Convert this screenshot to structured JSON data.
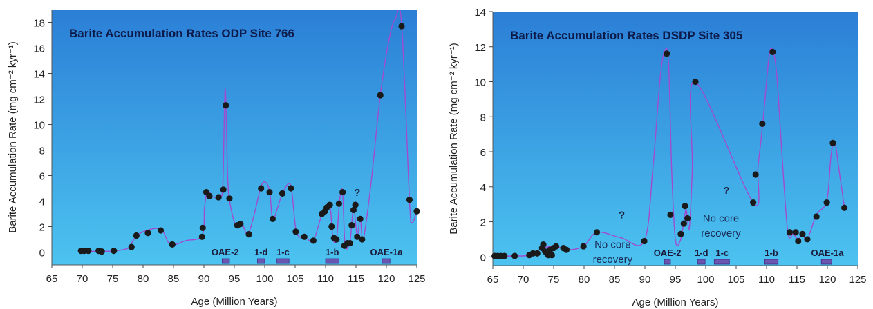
{
  "chart_data": [
    {
      "type": "line",
      "title": "Barite Accumulation Rates ODP Site 766",
      "xlabel": "Age (Million Years)",
      "ylabel": "Barite Accumulation Rate (mg cm⁻² kyr⁻¹)",
      "xlim": [
        65,
        125
      ],
      "ylim": [
        -1,
        19
      ],
      "xticks": [
        65,
        70,
        75,
        80,
        85,
        90,
        95,
        100,
        105,
        110,
        115,
        120,
        125
      ],
      "yticks": [
        0,
        2,
        4,
        6,
        8,
        10,
        12,
        14,
        16,
        18
      ],
      "grid": false,
      "colors": {
        "background_top": "#2b7fd6",
        "background_bottom": "#4cc3f0",
        "curve": "#a24bd0",
        "points": "#1a1a1a",
        "event_bar": "#6a55b0",
        "title": "#0d1a4a"
      },
      "points": [
        {
          "x": 69.8,
          "y": 0.1
        },
        {
          "x": 70.3,
          "y": 0.1
        },
        {
          "x": 71.0,
          "y": 0.1
        },
        {
          "x": 72.7,
          "y": 0.1
        },
        {
          "x": 73.2,
          "y": 0.05
        },
        {
          "x": 75.2,
          "y": 0.1
        },
        {
          "x": 78.1,
          "y": 0.4
        },
        {
          "x": 78.9,
          "y": 1.3
        },
        {
          "x": 80.8,
          "y": 1.5
        },
        {
          "x": 82.9,
          "y": 1.7
        },
        {
          "x": 84.8,
          "y": 0.6
        },
        {
          "x": 89.7,
          "y": 1.2
        },
        {
          "x": 89.8,
          "y": 1.9
        },
        {
          "x": 90.4,
          "y": 4.7
        },
        {
          "x": 90.9,
          "y": 4.4
        },
        {
          "x": 92.4,
          "y": 4.3
        },
        {
          "x": 93.2,
          "y": 4.9
        },
        {
          "x": 93.6,
          "y": 11.5
        },
        {
          "x": 94.2,
          "y": 4.2
        },
        {
          "x": 95.5,
          "y": 2.1
        },
        {
          "x": 96.0,
          "y": 2.2
        },
        {
          "x": 97.4,
          "y": 1.4
        },
        {
          "x": 99.4,
          "y": 5.0
        },
        {
          "x": 100.8,
          "y": 4.7
        },
        {
          "x": 101.3,
          "y": 2.6
        },
        {
          "x": 102.9,
          "y": 4.6
        },
        {
          "x": 104.3,
          "y": 5.0
        },
        {
          "x": 105.1,
          "y": 1.6
        },
        {
          "x": 106.5,
          "y": 1.2
        },
        {
          "x": 108.0,
          "y": 0.9
        },
        {
          "x": 109.4,
          "y": 3.0
        },
        {
          "x": 109.9,
          "y": 3.2
        },
        {
          "x": 110.2,
          "y": 3.5
        },
        {
          "x": 110.7,
          "y": 3.7
        },
        {
          "x": 111.0,
          "y": 2.0
        },
        {
          "x": 111.4,
          "y": 1.1
        },
        {
          "x": 111.8,
          "y": 1.0
        },
        {
          "x": 112.2,
          "y": 3.8
        },
        {
          "x": 112.8,
          "y": 4.7
        },
        {
          "x": 113.1,
          "y": 0.5
        },
        {
          "x": 113.6,
          "y": 0.7
        },
        {
          "x": 114.0,
          "y": 0.7
        },
        {
          "x": 114.3,
          "y": 2.1
        },
        {
          "x": 114.6,
          "y": 3.3
        },
        {
          "x": 114.9,
          "y": 3.7
        },
        {
          "x": 115.2,
          "y": 1.2
        },
        {
          "x": 115.7,
          "y": 2.6
        },
        {
          "x": 116.0,
          "y": 1.0
        },
        {
          "x": 119.0,
          "y": 12.3
        },
        {
          "x": 122.5,
          "y": 17.7
        },
        {
          "x": 123.8,
          "y": 4.1
        },
        {
          "x": 125.0,
          "y": 3.2
        }
      ],
      "curve": [
        {
          "x": 69.8,
          "y": 0.1
        },
        {
          "x": 73.0,
          "y": 0.05
        },
        {
          "x": 75.2,
          "y": 0.1
        },
        {
          "x": 77.5,
          "y": 0.3
        },
        {
          "x": 78.5,
          "y": 1.0
        },
        {
          "x": 80.0,
          "y": 1.6
        },
        {
          "x": 82.9,
          "y": 1.8
        },
        {
          "x": 84.5,
          "y": 0.6
        },
        {
          "x": 87.0,
          "y": 0.9
        },
        {
          "x": 89.7,
          "y": 1.3
        },
        {
          "x": 90.1,
          "y": 3.5
        },
        {
          "x": 90.6,
          "y": 4.8
        },
        {
          "x": 91.5,
          "y": 4.3
        },
        {
          "x": 92.6,
          "y": 4.5
        },
        {
          "x": 93.1,
          "y": 5.2
        },
        {
          "x": 93.5,
          "y": 12.8
        },
        {
          "x": 93.9,
          "y": 6.0
        },
        {
          "x": 94.3,
          "y": 3.8
        },
        {
          "x": 95.3,
          "y": 2.0
        },
        {
          "x": 96.2,
          "y": 2.3
        },
        {
          "x": 97.2,
          "y": 1.4
        },
        {
          "x": 98.3,
          "y": 3.0
        },
        {
          "x": 99.3,
          "y": 5.0
        },
        {
          "x": 100.0,
          "y": 5.5
        },
        {
          "x": 100.8,
          "y": 4.8
        },
        {
          "x": 101.3,
          "y": 2.6
        },
        {
          "x": 102.2,
          "y": 3.6
        },
        {
          "x": 103.0,
          "y": 4.7
        },
        {
          "x": 104.3,
          "y": 5.2
        },
        {
          "x": 105.2,
          "y": 1.6
        },
        {
          "x": 106.8,
          "y": 1.1
        },
        {
          "x": 108.0,
          "y": 0.9
        },
        {
          "x": 109.3,
          "y": 2.8
        },
        {
          "x": 110.2,
          "y": 3.6
        },
        {
          "x": 110.8,
          "y": 3.4
        },
        {
          "x": 111.2,
          "y": 1.1
        },
        {
          "x": 111.8,
          "y": 1.0
        },
        {
          "x": 112.3,
          "y": 4.0
        },
        {
          "x": 112.8,
          "y": 4.8
        },
        {
          "x": 113.2,
          "y": 0.6
        },
        {
          "x": 114.0,
          "y": 0.8
        },
        {
          "x": 114.6,
          "y": 3.5
        },
        {
          "x": 115.2,
          "y": 1.3
        },
        {
          "x": 115.7,
          "y": 2.7
        },
        {
          "x": 116.2,
          "y": 1.0
        },
        {
          "x": 117.5,
          "y": 5.5
        },
        {
          "x": 119.0,
          "y": 12.3
        },
        {
          "x": 120.5,
          "y": 16.8
        },
        {
          "x": 121.5,
          "y": 18.3
        },
        {
          "x": 122.5,
          "y": 17.9
        },
        {
          "x": 123.8,
          "y": 4.1
        },
        {
          "x": 124.2,
          "y": 2.3
        },
        {
          "x": 125.0,
          "y": 3.2
        }
      ],
      "annotations": [
        {
          "text": "OAE-2",
          "x": 93.5,
          "y": -0.8,
          "bar": [
            93.0,
            94.2
          ]
        },
        {
          "text": "1-d",
          "x": 99.4,
          "y": -0.8,
          "bar": [
            98.8,
            100.0
          ]
        },
        {
          "text": "1-c",
          "x": 103.0,
          "y": -0.8,
          "bar": [
            102.0,
            104.0
          ]
        },
        {
          "text": "1-b",
          "x": 111.1,
          "y": -0.8,
          "bar": [
            110.0,
            112.2
          ]
        },
        {
          "text": "OAE-1a",
          "x": 120.0,
          "y": -0.8,
          "bar": [
            119.3,
            120.6
          ]
        },
        {
          "text": "?",
          "x": 115.2,
          "y": 4.4,
          "bar": null
        }
      ]
    },
    {
      "type": "line",
      "title": "Barite Accumulation Rates DSDP Site 305",
      "xlabel": "Age (Million Years)",
      "ylabel": "Barite Accumulation Rate (mg cm⁻² kyr⁻¹)",
      "xlim": [
        65,
        125
      ],
      "ylim": [
        -0.5,
        14
      ],
      "xticks": [
        65,
        70,
        75,
        80,
        85,
        90,
        95,
        100,
        105,
        110,
        115,
        120,
        125
      ],
      "yticks": [
        0,
        2,
        4,
        6,
        8,
        10,
        12,
        14
      ],
      "grid": false,
      "colors": {
        "background_top": "#2b7fd6",
        "background_bottom": "#4cc3f0",
        "curve": "#a24bd0",
        "points": "#1a1a1a",
        "event_bar": "#6a55b0",
        "title": "#0d1a4a"
      },
      "points": [
        {
          "x": 65.3,
          "y": 0.05
        },
        {
          "x": 65.8,
          "y": 0.05
        },
        {
          "x": 66.3,
          "y": 0.05
        },
        {
          "x": 66.9,
          "y": 0.05
        },
        {
          "x": 68.6,
          "y": 0.05
        },
        {
          "x": 71.0,
          "y": 0.1
        },
        {
          "x": 71.6,
          "y": 0.2
        },
        {
          "x": 72.3,
          "y": 0.2
        },
        {
          "x": 73.1,
          "y": 0.5
        },
        {
          "x": 73.3,
          "y": 0.7
        },
        {
          "x": 73.6,
          "y": 0.3
        },
        {
          "x": 73.9,
          "y": 0.2
        },
        {
          "x": 74.1,
          "y": 0.1
        },
        {
          "x": 74.4,
          "y": 0.4
        },
        {
          "x": 74.7,
          "y": 0.1
        },
        {
          "x": 75.0,
          "y": 0.5
        },
        {
          "x": 75.4,
          "y": 0.6
        },
        {
          "x": 76.6,
          "y": 0.5
        },
        {
          "x": 77.1,
          "y": 0.4
        },
        {
          "x": 79.9,
          "y": 0.6
        },
        {
          "x": 82.1,
          "y": 1.4
        },
        {
          "x": 89.9,
          "y": 0.9
        },
        {
          "x": 93.6,
          "y": 11.6
        },
        {
          "x": 94.2,
          "y": 2.4
        },
        {
          "x": 95.9,
          "y": 1.3
        },
        {
          "x": 96.4,
          "y": 1.9
        },
        {
          "x": 96.6,
          "y": 2.9
        },
        {
          "x": 97.0,
          "y": 2.2
        },
        {
          "x": 98.3,
          "y": 10.0
        },
        {
          "x": 107.8,
          "y": 3.1
        },
        {
          "x": 108.2,
          "y": 4.7
        },
        {
          "x": 109.3,
          "y": 7.6
        },
        {
          "x": 111.0,
          "y": 11.7
        },
        {
          "x": 113.8,
          "y": 1.4
        },
        {
          "x": 114.8,
          "y": 1.4
        },
        {
          "x": 115.2,
          "y": 0.9
        },
        {
          "x": 115.9,
          "y": 1.3
        },
        {
          "x": 116.7,
          "y": 1.0
        },
        {
          "x": 118.2,
          "y": 2.3
        },
        {
          "x": 119.9,
          "y": 3.1
        },
        {
          "x": 120.9,
          "y": 6.5
        },
        {
          "x": 122.8,
          "y": 2.8
        }
      ],
      "curve": [
        {
          "x": 65.3,
          "y": 0.05
        },
        {
          "x": 68.6,
          "y": 0.05
        },
        {
          "x": 71.0,
          "y": 0.1
        },
        {
          "x": 73.3,
          "y": 0.5
        },
        {
          "x": 75.4,
          "y": 0.6
        },
        {
          "x": 77.1,
          "y": 0.4
        },
        {
          "x": 79.9,
          "y": 0.6
        },
        {
          "x": 82.1,
          "y": 1.4
        },
        {
          "x": 86.0,
          "y": 1.1
        },
        {
          "x": 89.9,
          "y": 0.9
        },
        {
          "x": 91.3,
          "y": 5.0
        },
        {
          "x": 92.5,
          "y": 10.2
        },
        {
          "x": 93.3,
          "y": 11.8
        },
        {
          "x": 93.9,
          "y": 11.0
        },
        {
          "x": 94.4,
          "y": 5.0
        },
        {
          "x": 95.0,
          "y": 1.0
        },
        {
          "x": 95.8,
          "y": 0.9
        },
        {
          "x": 96.4,
          "y": 2.0
        },
        {
          "x": 96.8,
          "y": 2.7
        },
        {
          "x": 97.3,
          "y": 1.6
        },
        {
          "x": 97.8,
          "y": 5.0
        },
        {
          "x": 98.3,
          "y": 10.0
        },
        {
          "x": 107.8,
          "y": 3.1
        },
        {
          "x": 108.6,
          "y": 5.2
        },
        {
          "x": 109.4,
          "y": 7.7
        },
        {
          "x": 110.4,
          "y": 11.4
        },
        {
          "x": 111.0,
          "y": 11.8
        },
        {
          "x": 111.7,
          "y": 10.3
        },
        {
          "x": 112.6,
          "y": 5.5
        },
        {
          "x": 113.5,
          "y": 1.4
        },
        {
          "x": 114.4,
          "y": 1.3
        },
        {
          "x": 115.2,
          "y": 1.0
        },
        {
          "x": 115.9,
          "y": 1.3
        },
        {
          "x": 116.7,
          "y": 1.0
        },
        {
          "x": 118.2,
          "y": 2.4
        },
        {
          "x": 119.9,
          "y": 3.2
        },
        {
          "x": 120.6,
          "y": 5.8
        },
        {
          "x": 121.2,
          "y": 6.6
        },
        {
          "x": 121.9,
          "y": 5.0
        },
        {
          "x": 122.8,
          "y": 2.8
        }
      ],
      "annotations": [
        {
          "text": "No core",
          "x": 84.7,
          "y": 0.5,
          "bar": null
        },
        {
          "text": "recovery",
          "x": 84.7,
          "y": -0.35,
          "bar": null
        },
        {
          "text": "?",
          "x": 86.2,
          "y": 2.2,
          "bar": null
        },
        {
          "text": "?",
          "x": 103.4,
          "y": 3.6,
          "bar": null
        },
        {
          "text": "No core",
          "x": 102.5,
          "y": 2.0,
          "bar": null
        },
        {
          "text": "recovery",
          "x": 102.5,
          "y": 1.15,
          "bar": null
        },
        {
          "text": "OAE-2",
          "x": 93.7,
          "y": -0.5,
          "bar": [
            93.2,
            94.2
          ]
        },
        {
          "text": "1-d",
          "x": 99.3,
          "y": -0.5,
          "bar": [
            98.7,
            99.9
          ]
        },
        {
          "text": "1-c",
          "x": 102.7,
          "y": -0.5,
          "bar": [
            101.4,
            103.9
          ]
        },
        {
          "text": "1-b",
          "x": 110.8,
          "y": -0.5,
          "bar": [
            109.7,
            111.9
          ]
        },
        {
          "text": "OAE-1a",
          "x": 120.0,
          "y": -0.5,
          "bar": [
            119.0,
            120.7
          ]
        }
      ]
    }
  ]
}
